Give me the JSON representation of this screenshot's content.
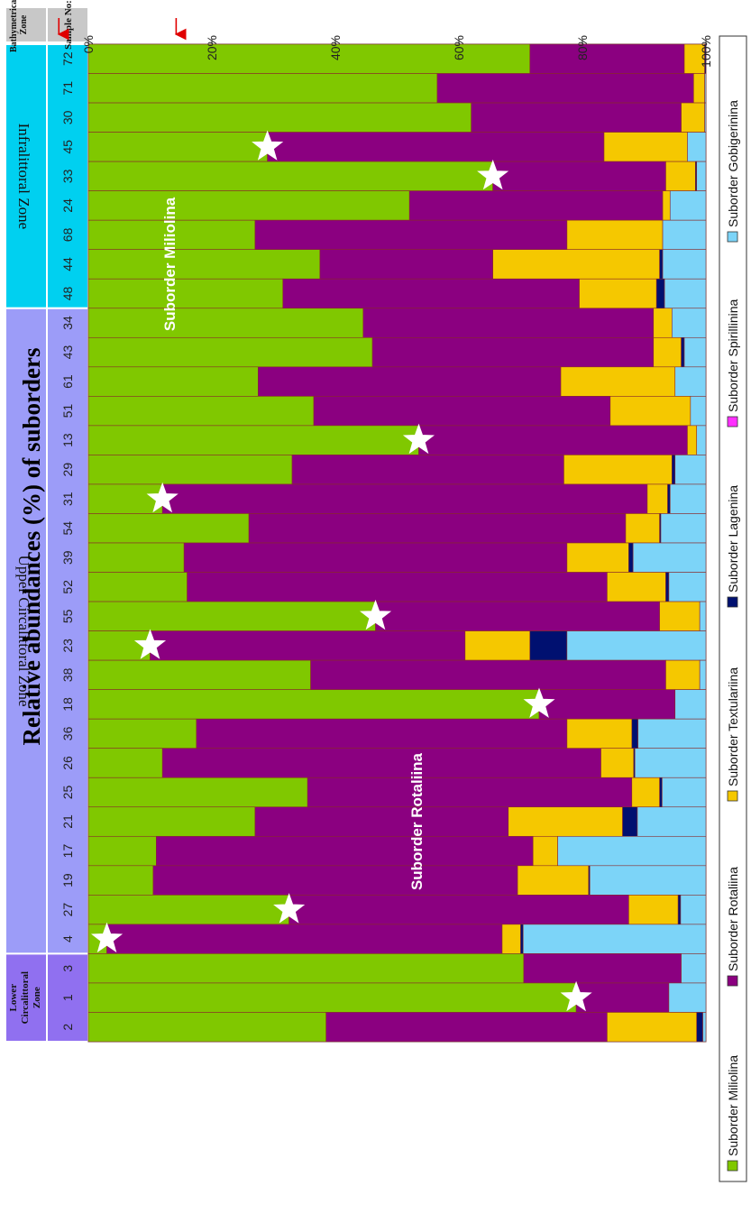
{
  "chart_data": {
    "type": "bar",
    "orientation": "horizontal-stacked-100",
    "title": "Relative abundances (%) of suborders",
    "xlabel": "",
    "ylabel": "",
    "xlim": [
      0,
      100
    ],
    "x_ticks": [
      "0%",
      "20%",
      "40%",
      "60%",
      "80%",
      "100%"
    ],
    "grid": false,
    "legend_position": "right",
    "categories": [
      "72",
      "71",
      "30",
      "45",
      "33",
      "24",
      "68",
      "44",
      "48",
      "34",
      "43",
      "61",
      "51",
      "13",
      "29",
      "31",
      "54",
      "39",
      "52",
      "55",
      "23",
      "38",
      "18",
      "36",
      "26",
      "25",
      "21",
      "17",
      "19",
      "27",
      "4",
      "3",
      "1",
      "2"
    ],
    "series": [
      {
        "name": "Suborder Miliolina",
        "color": "#80c800",
        "values": [
          71.5,
          56.5,
          62,
          29,
          65.5,
          52,
          27,
          37.5,
          31.5,
          44.5,
          46,
          27.5,
          36.5,
          53.5,
          33,
          12,
          26,
          15.5,
          16,
          46.5,
          10,
          36,
          73,
          17.5,
          12,
          35.5,
          27,
          11,
          10.5,
          32.5,
          3,
          70.5,
          79,
          38.5
        ]
      },
      {
        "name": "Suborder Rotaliina",
        "color": "#8b0080",
        "values": [
          25,
          41.5,
          34,
          54.5,
          28,
          41,
          50.5,
          28,
          48,
          47,
          45.5,
          49,
          48,
          43.5,
          44,
          78.5,
          61,
          62,
          68,
          46,
          51,
          57.5,
          22,
          60,
          71,
          52.5,
          41,
          61,
          59,
          55,
          64,
          25.5,
          15,
          45.5
        ]
      },
      {
        "name": "Suborder Textulariina",
        "color": "#f5c800",
        "values": [
          3.3,
          1.8,
          3.8,
          13.5,
          4.8,
          1.2,
          15.5,
          27,
          12.5,
          3,
          4.5,
          18.5,
          13,
          1.5,
          17.5,
          3.3,
          5.5,
          10,
          9.5,
          6.5,
          10.5,
          5.5,
          0,
          10.5,
          5.3,
          4.5,
          18.5,
          4,
          11.5,
          8,
          3,
          0,
          0,
          14.5
        ]
      },
      {
        "name": "Suborder Lagenina",
        "color": "#001070",
        "values": [
          0.2,
          0,
          0,
          0,
          0.2,
          0,
          0,
          0.5,
          1.3,
          0,
          0.5,
          0,
          0,
          0,
          0.5,
          0.4,
          0.2,
          0.7,
          0.5,
          0,
          6,
          0,
          0,
          1,
          0.2,
          0.4,
          2.4,
          0,
          0.2,
          0.4,
          0.4,
          0,
          0,
          1
        ]
      },
      {
        "name": "Suborder Spirillinina",
        "color": "#ff2fff",
        "values": [
          0,
          0,
          0,
          0,
          0,
          0,
          0,
          0,
          0,
          0,
          0,
          0,
          0,
          0,
          0,
          0,
          0,
          0,
          0,
          0,
          0,
          0,
          0,
          0,
          0,
          0,
          0,
          0,
          0,
          0,
          0,
          0,
          0,
          0
        ]
      },
      {
        "name": "Suborder Gobigerinina",
        "color": "#7cd4f8",
        "values": [
          0,
          0.2,
          0.2,
          3,
          1.5,
          5.8,
          7,
          7,
          6.7,
          5.5,
          3.5,
          5,
          2.5,
          1.5,
          5,
          5.8,
          7.3,
          11.8,
          6,
          1,
          22.5,
          1,
          5,
          11,
          11.5,
          7.1,
          11.1,
          24,
          18.8,
          4.1,
          29.6,
          4,
          6,
          0.5
        ]
      }
    ],
    "annotations": {
      "star_rows": [
        "45",
        "33",
        "13",
        "31",
        "55",
        "23",
        "18",
        "27",
        "4",
        "1"
      ],
      "arrow_rows": [
        "72",
        "33"
      ],
      "miliolina_label": "Suborder Miliolina",
      "rotaliina_label": "Suborder Rotaliina"
    },
    "table": {
      "header_zone": "Bathymetrical Zone",
      "header_sample": "Sample No:",
      "zones": [
        {
          "label": "Infralittoral Zone",
          "start": 0,
          "end": 8,
          "color": "#00d0f0"
        },
        {
          "label": "Upper Circalittoral Zone",
          "start": 9,
          "end": 30,
          "color": "#9c9cf8"
        },
        {
          "label": "Lower Circalittoral Zone",
          "lines": [
            "Lower",
            "Circalittoral",
            "Zone"
          ],
          "start": 31,
          "end": 33,
          "color": "#9070f0"
        }
      ]
    }
  }
}
